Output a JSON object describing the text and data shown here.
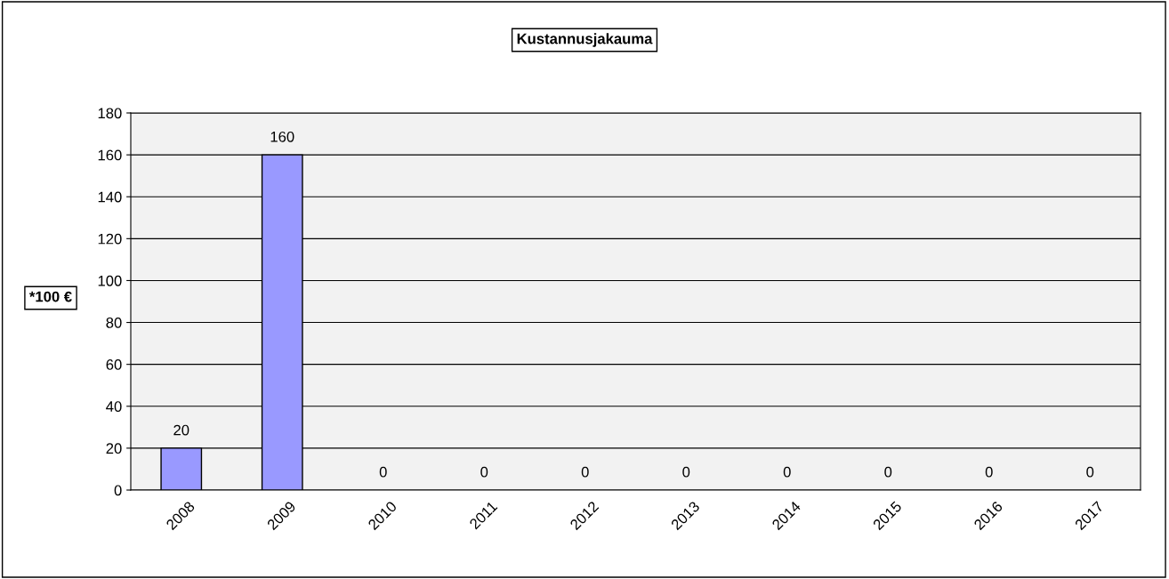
{
  "chart_data": {
    "type": "bar",
    "title": "Kustannusjakauma",
    "ylabel": "*100 €",
    "categories": [
      "2008",
      "2009",
      "2010",
      "2011",
      "2012",
      "2013",
      "2014",
      "2015",
      "2016",
      "2017"
    ],
    "values": [
      20,
      160,
      0,
      0,
      0,
      0,
      0,
      0,
      0,
      0
    ],
    "color": "#9999ff",
    "ylim": [
      0,
      180
    ],
    "yticks": [
      0,
      20,
      40,
      60,
      80,
      100,
      120,
      140,
      160,
      180
    ],
    "grid": "y",
    "data_labels": true
  }
}
